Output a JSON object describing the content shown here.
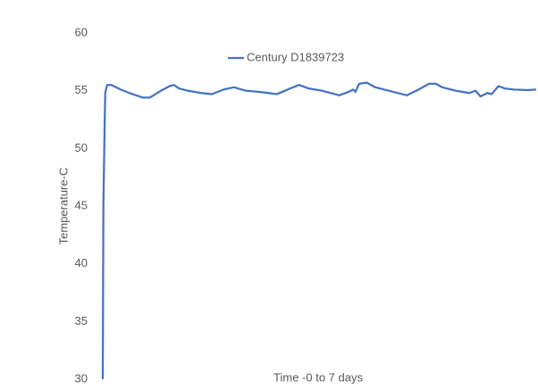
{
  "chart_data": {
    "type": "line",
    "x_label": "Time -0 to 7 days",
    "y_label": "Temperature-C",
    "x": [
      0,
      0.01,
      0.03,
      0.04,
      0.07,
      0.14,
      0.29,
      0.43,
      0.65,
      0.76,
      0.94,
      1.08,
      1.15,
      1.23,
      1.37,
      1.59,
      1.76,
      1.95,
      2.12,
      2.31,
      2.53,
      2.81,
      3.03,
      3.17,
      3.32,
      3.54,
      3.82,
      3.97,
      4.04,
      4.08,
      4.14,
      4.26,
      4.4,
      4.69,
      4.91,
      5.1,
      5.27,
      5.38,
      5.48,
      5.7,
      5.92,
      6.02,
      6.1,
      6.21,
      6.28,
      6.39,
      6.49,
      6.64,
      6.86,
      7.0
    ],
    "series": [
      {
        "name": "Century D1839723",
        "color": "#4472c4",
        "values": [
          30,
          45,
          52,
          54.8,
          55.5,
          55.5,
          55.1,
          54.8,
          54.4,
          54.4,
          55.0,
          55.4,
          55.5,
          55.2,
          55.0,
          54.8,
          54.7,
          55.1,
          55.3,
          55.0,
          54.9,
          54.7,
          55.2,
          55.5,
          55.2,
          55.0,
          54.6,
          54.9,
          55.1,
          54.9,
          55.6,
          55.7,
          55.3,
          54.9,
          54.6,
          55.1,
          55.6,
          55.6,
          55.3,
          55.0,
          54.8,
          55.0,
          54.5,
          54.8,
          54.7,
          55.4,
          55.2,
          55.1,
          55.05,
          55.1
        ]
      }
    ],
    "xlim": [
      0,
      7
    ],
    "ylim": [
      30,
      60
    ],
    "yticks": [
      30,
      35,
      40,
      45,
      50,
      55,
      60
    ],
    "grid": false,
    "legend": "top"
  }
}
